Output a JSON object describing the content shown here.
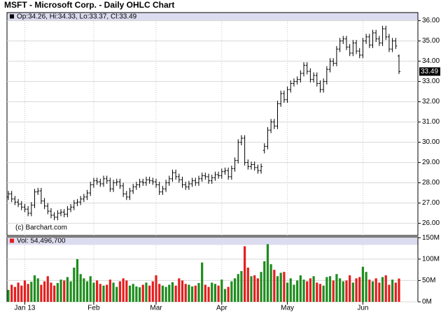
{
  "chart_data": [
    {
      "type": "ohlc",
      "title": "MSFT - Microsoft Corp. - Daily OHLC Chart",
      "legend_text": "Op:34.26, Hi:34.33, Lo:33.37, Cl:33.49",
      "credit": "(c) Barchart.com",
      "last_label": "33.49",
      "color": "#000000",
      "ylim": [
        25.4,
        36.4
      ],
      "yticks": [
        {
          "value": 26,
          "label": "26.00"
        },
        {
          "value": 27,
          "label": "27.00"
        },
        {
          "value": 28,
          "label": "28.00"
        },
        {
          "value": 29,
          "label": "29.00"
        },
        {
          "value": 30,
          "label": "30.00"
        },
        {
          "value": 31,
          "label": "31.00"
        },
        {
          "value": 32,
          "label": "32.00"
        },
        {
          "value": 33,
          "label": "33.00"
        },
        {
          "value": 34,
          "label": "34.00"
        },
        {
          "value": 35,
          "label": "35.00"
        },
        {
          "value": 36,
          "label": "36.00"
        }
      ],
      "grid": true,
      "open": [
        27.3,
        27.45,
        27.2,
        27.05,
        26.95,
        26.8,
        26.7,
        26.5,
        26.9,
        27.55,
        27.6,
        27.1,
        26.85,
        26.6,
        26.4,
        26.3,
        26.5,
        26.55,
        26.45,
        26.7,
        26.8,
        27.0,
        27.05,
        27.2,
        27.3,
        27.5,
        27.9,
        28.1,
        28.05,
        27.95,
        28.2,
        28.1,
        27.7,
        28.0,
        28.05,
        27.85,
        27.45,
        27.3,
        27.6,
        27.8,
        27.9,
        28.05,
        28.0,
        28.15,
        28.1,
        28.05,
        27.9,
        27.55,
        27.7,
        28.0,
        28.2,
        28.5,
        28.3,
        28.15,
        27.9,
        27.8,
        27.95,
        28.1,
        28.0,
        28.2,
        28.35,
        28.3,
        28.1,
        28.25,
        28.4,
        28.35,
        28.55,
        28.6,
        28.3,
        28.7,
        29.1,
        30.0,
        30.2,
        29.0,
        28.8,
        28.9,
        28.75,
        28.6,
        29.6,
        29.8,
        30.6,
        31.0,
        30.8,
        31.9,
        32.4,
        32.1,
        32.6,
        32.9,
        33.0,
        33.1,
        33.4,
        33.8,
        33.5,
        33.1,
        33.3,
        32.9,
        32.6,
        33.0,
        33.6,
        34.0,
        33.9,
        34.6,
        35.0,
        35.1,
        34.7,
        34.4,
        34.9,
        34.5,
        34.3,
        35.0,
        35.2,
        34.8,
        35.4,
        35.1,
        34.9,
        35.6,
        35.2,
        34.6,
        35.0,
        34.26
      ],
      "high": [
        27.6,
        27.6,
        27.35,
        27.2,
        27.1,
        26.95,
        26.85,
        27.05,
        27.7,
        27.75,
        27.75,
        27.25,
        27.0,
        26.75,
        26.55,
        26.65,
        26.7,
        26.7,
        26.85,
        26.95,
        27.15,
        27.2,
        27.35,
        27.45,
        27.65,
        28.05,
        28.25,
        28.25,
        28.2,
        28.35,
        28.35,
        28.25,
        28.15,
        28.2,
        28.2,
        28.0,
        27.6,
        27.75,
        27.95,
        28.05,
        28.2,
        28.2,
        28.3,
        28.3,
        28.25,
        28.2,
        28.05,
        27.85,
        28.15,
        28.35,
        28.65,
        28.65,
        28.45,
        28.3,
        28.05,
        28.1,
        28.25,
        28.25,
        28.35,
        28.5,
        28.5,
        28.45,
        28.4,
        28.55,
        28.55,
        28.7,
        28.75,
        28.75,
        28.85,
        29.25,
        30.15,
        30.35,
        30.35,
        29.15,
        29.05,
        29.05,
        28.9,
        28.95,
        29.95,
        30.75,
        31.15,
        31.15,
        32.05,
        32.55,
        32.55,
        32.75,
        33.05,
        33.15,
        33.25,
        33.55,
        33.95,
        33.95,
        33.65,
        33.45,
        33.45,
        33.05,
        33.15,
        33.75,
        34.15,
        34.15,
        34.75,
        35.15,
        35.25,
        35.25,
        34.85,
        35.05,
        35.05,
        34.65,
        35.15,
        35.35,
        35.35,
        35.55,
        35.55,
        35.25,
        35.75,
        35.75,
        35.35,
        35.15,
        35.15,
        34.33
      ],
      "low": [
        27.15,
        27.05,
        26.9,
        26.8,
        26.65,
        26.55,
        26.35,
        26.35,
        26.75,
        27.4,
        26.95,
        26.7,
        26.45,
        26.25,
        26.15,
        26.15,
        26.35,
        26.3,
        26.3,
        26.55,
        26.65,
        26.85,
        26.9,
        27.05,
        27.15,
        27.35,
        27.75,
        27.9,
        27.8,
        27.8,
        27.95,
        27.55,
        27.55,
        27.85,
        27.7,
        27.3,
        27.15,
        27.15,
        27.45,
        27.65,
        27.75,
        27.85,
        27.85,
        27.95,
        27.9,
        27.75,
        27.4,
        27.4,
        27.55,
        27.85,
        28.05,
        28.15,
        28.0,
        27.75,
        27.65,
        27.65,
        27.8,
        27.85,
        27.85,
        28.05,
        28.15,
        27.95,
        27.95,
        28.1,
        28.2,
        28.2,
        28.4,
        28.15,
        28.15,
        28.55,
        28.95,
        29.85,
        28.85,
        28.65,
        28.65,
        28.6,
        28.45,
        28.45,
        29.45,
        29.65,
        30.45,
        30.65,
        30.65,
        31.75,
        31.95,
        31.95,
        32.45,
        32.75,
        32.85,
        32.95,
        33.25,
        33.35,
        32.95,
        32.95,
        32.75,
        32.45,
        32.45,
        32.85,
        33.45,
        33.75,
        33.75,
        34.45,
        34.85,
        34.55,
        34.25,
        34.25,
        34.35,
        34.15,
        34.15,
        34.85,
        34.65,
        34.65,
        34.95,
        34.75,
        34.75,
        35.05,
        34.45,
        34.45,
        34.6,
        33.37
      ],
      "close": [
        27.45,
        27.2,
        27.05,
        26.95,
        26.8,
        26.7,
        26.5,
        26.9,
        27.55,
        27.6,
        27.1,
        26.85,
        26.6,
        26.4,
        26.3,
        26.5,
        26.55,
        26.45,
        26.7,
        26.8,
        27.0,
        27.05,
        27.2,
        27.3,
        27.5,
        27.9,
        28.1,
        28.05,
        27.95,
        28.2,
        28.1,
        27.7,
        28.0,
        28.05,
        27.85,
        27.45,
        27.3,
        27.6,
        27.8,
        27.9,
        28.05,
        28.0,
        28.15,
        28.1,
        28.05,
        27.9,
        27.55,
        27.7,
        28.0,
        28.2,
        28.5,
        28.3,
        28.15,
        27.9,
        27.8,
        27.95,
        28.1,
        28.0,
        28.2,
        28.35,
        28.3,
        28.1,
        28.25,
        28.4,
        28.35,
        28.55,
        28.6,
        28.3,
        28.7,
        29.1,
        30.0,
        30.2,
        29.0,
        28.8,
        28.9,
        28.75,
        28.6,
        28.8,
        29.8,
        30.6,
        31.0,
        30.8,
        31.9,
        32.4,
        32.1,
        32.6,
        32.9,
        33.0,
        33.1,
        33.4,
        33.8,
        33.5,
        33.1,
        33.3,
        32.9,
        32.6,
        33.0,
        33.6,
        34.0,
        33.9,
        34.6,
        35.0,
        35.1,
        34.7,
        34.4,
        34.9,
        34.5,
        34.3,
        35.0,
        35.2,
        34.8,
        35.4,
        35.1,
        34.9,
        35.6,
        35.2,
        34.6,
        35.0,
        34.75,
        33.49
      ]
    },
    {
      "type": "bar",
      "legend_text": "Vol: 54,496,700",
      "up_color": "#1e8c1e",
      "down_color": "#e41e1e",
      "ylim": [
        0,
        152
      ],
      "yticks": [
        {
          "value": 0,
          "label": "0M"
        },
        {
          "value": 50,
          "label": "50M"
        },
        {
          "value": 100,
          "label": "100M"
        },
        {
          "value": 150,
          "label": "150M"
        }
      ],
      "grid": true,
      "categories": [
        null,
        null,
        null,
        null,
        null,
        "Jan 13",
        null,
        null,
        null,
        null,
        null,
        null,
        null,
        null,
        null,
        null,
        null,
        null,
        null,
        null,
        null,
        null,
        null,
        null,
        null,
        null,
        "Feb",
        null,
        null,
        null,
        null,
        null,
        null,
        null,
        null,
        null,
        null,
        null,
        null,
        null,
        null,
        null,
        null,
        null,
        null,
        "Mar",
        null,
        null,
        null,
        null,
        null,
        null,
        null,
        null,
        null,
        null,
        null,
        null,
        null,
        null,
        null,
        null,
        null,
        null,
        null,
        "Apr",
        null,
        null,
        null,
        null,
        null,
        null,
        null,
        null,
        null,
        null,
        null,
        null,
        null,
        null,
        null,
        null,
        null,
        null,
        null,
        "May",
        null,
        null,
        null,
        null,
        null,
        null,
        null,
        null,
        null,
        null,
        null,
        null,
        null,
        null,
        null,
        null,
        null,
        null,
        null,
        null,
        null,
        null,
        "Jun",
        null,
        null,
        null,
        null,
        null,
        null,
        null,
        null,
        null,
        null,
        null
      ],
      "values": [
        28,
        40,
        35,
        45,
        38,
        50,
        42,
        47,
        62,
        55,
        40,
        48,
        60,
        45,
        38,
        44,
        52,
        50,
        58,
        48,
        80,
        100,
        65,
        55,
        48,
        60,
        45,
        50,
        42,
        38,
        40,
        52,
        45,
        35,
        48,
        55,
        50,
        38,
        42,
        36,
        34,
        40,
        45,
        38,
        48,
        62,
        42,
        38,
        35,
        40,
        46,
        38,
        55,
        50,
        42,
        40,
        36,
        38,
        44,
        92,
        40,
        35,
        45,
        42,
        38,
        52,
        30,
        35,
        48,
        55,
        65,
        72,
        130,
        80,
        60,
        62,
        55,
        70,
        95,
        135,
        88,
        75,
        60,
        68,
        70,
        45,
        55,
        40,
        50,
        62,
        52,
        48,
        55,
        60,
        45,
        42,
        38,
        58,
        60,
        50,
        65,
        55,
        48,
        50,
        62,
        45,
        55,
        58,
        82,
        70,
        52,
        48,
        55,
        45,
        58,
        62,
        40,
        52,
        45,
        54.4967
      ]
    }
  ]
}
